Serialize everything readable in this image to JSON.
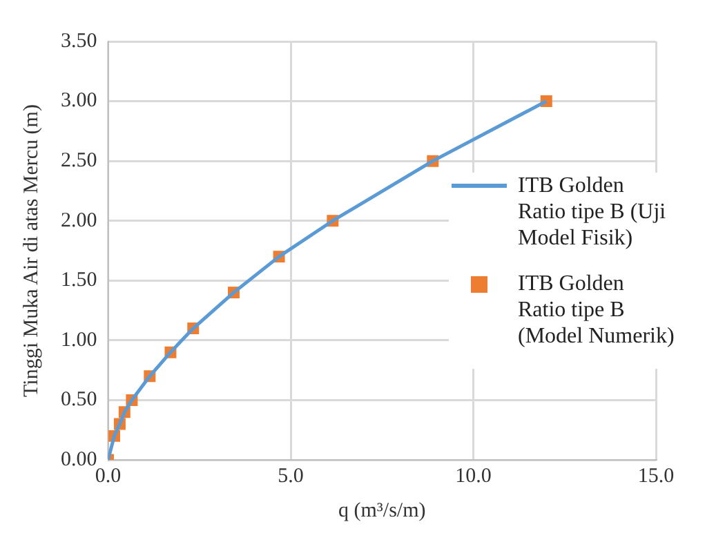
{
  "chart_data": {
    "type": "line",
    "xlabel": "q (m³/s/m)",
    "ylabel": "Tinggi Muka Air di atas Mercu (m)",
    "x": [
      0,
      0.17,
      0.32,
      0.45,
      0.65,
      1.14,
      1.71,
      2.33,
      3.44,
      4.68,
      6.15,
      8.89,
      12.0
    ],
    "series": [
      {
        "name": "ITB Golden Ratio tipe B (Uji Model Fisik)",
        "color": "#5b9bd5",
        "marker": "none",
        "line_style": "solid",
        "values": [
          0,
          0.2,
          0.3,
          0.4,
          0.5,
          0.7,
          0.9,
          1.1,
          1.4,
          1.7,
          2.0,
          2.5,
          3.0
        ]
      },
      {
        "name": "ITB Golden Ratio tipe B (Model Numerik)",
        "type": "scatter",
        "color": "#ed7d31",
        "marker": "square",
        "values": [
          0,
          0.2,
          0.3,
          0.4,
          0.5,
          0.7,
          0.9,
          1.1,
          1.4,
          1.7,
          2.0,
          2.5,
          3.0
        ]
      }
    ],
    "xlim": [
      0,
      15
    ],
    "xticks": [
      {
        "value": 0,
        "label": "0.0"
      },
      {
        "value": 5,
        "label": "5.0"
      },
      {
        "value": 10,
        "label": "10.0"
      },
      {
        "value": 15,
        "label": "15.0"
      }
    ],
    "ylim": [
      0,
      3.5
    ],
    "yticks": [
      {
        "value": 0,
        "label": "0.00"
      },
      {
        "value": 0.5,
        "label": "0.50"
      },
      {
        "value": 1,
        "label": "1.00"
      },
      {
        "value": 1.5,
        "label": "1.50"
      },
      {
        "value": 2,
        "label": "2.00"
      },
      {
        "value": 2.5,
        "label": "2.50"
      },
      {
        "value": 3,
        "label": "3.00"
      },
      {
        "value": 3.5,
        "label": "3.50"
      }
    ],
    "grid": true,
    "legend": "right"
  }
}
